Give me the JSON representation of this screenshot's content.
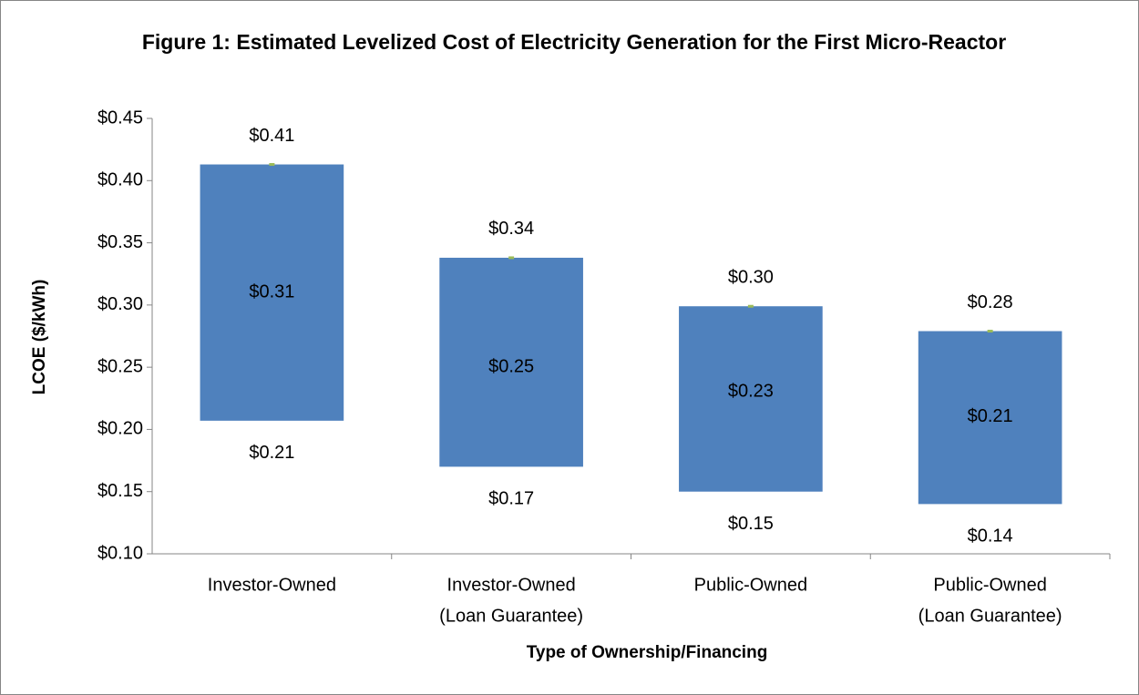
{
  "chart_data": {
    "type": "floating_bar",
    "title": "Figure 1: Estimated Levelized Cost of Electricity Generation for the First Micro-Reactor",
    "x_label": "Type of Ownership/Financing",
    "y_label": "LCOE ($/kWh)",
    "categories": [
      [
        "Investor-Owned"
      ],
      [
        "Investor-Owned",
        "(Loan Guarantee)"
      ],
      [
        "Public-Owned"
      ],
      [
        "Public-Owned",
        "(Loan Guarantee)"
      ]
    ],
    "color": "#4f81bd",
    "marker_color": "#9bbb59",
    "low": {
      "values": [
        0.207,
        0.17,
        0.15,
        0.14
      ],
      "value_labels": [
        "$0.21",
        "$0.17",
        "$0.15",
        "$0.14"
      ]
    },
    "mid": {
      "values": [
        0.31,
        0.25,
        0.23,
        0.21
      ],
      "value_labels": [
        "$0.31",
        "$0.25",
        "$0.23",
        "$0.21"
      ]
    },
    "high": {
      "values": [
        0.413,
        0.338,
        0.299,
        0.279
      ],
      "value_labels": [
        "$0.41",
        "$0.34",
        "$0.30",
        "$0.28"
      ]
    },
    "ylim": [
      0.1,
      0.45
    ],
    "yticks": [
      {
        "value": 0.1,
        "label": "$0.10"
      },
      {
        "value": 0.15,
        "label": "$0.15"
      },
      {
        "value": 0.2,
        "label": "$0.20"
      },
      {
        "value": 0.25,
        "label": "$0.25"
      },
      {
        "value": 0.3,
        "label": "$0.30"
      },
      {
        "value": 0.35,
        "label": "$0.35"
      },
      {
        "value": 0.4,
        "label": "$0.40"
      },
      {
        "value": 0.45,
        "label": "$0.45"
      }
    ],
    "grid": false
  }
}
